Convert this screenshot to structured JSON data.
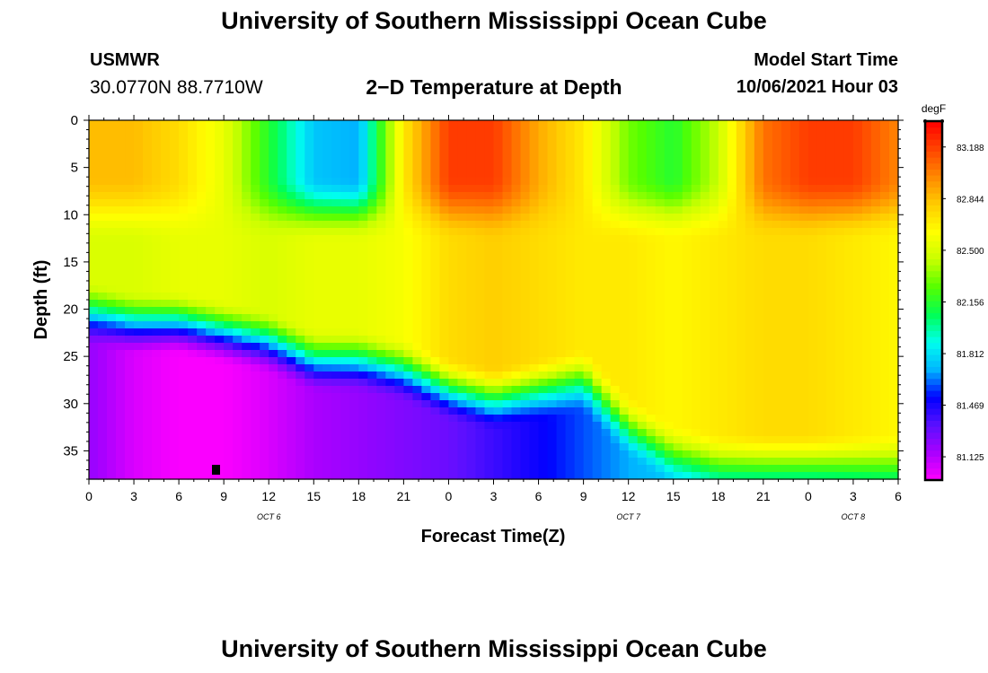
{
  "header": {
    "title": "University of Southern Mississippi Ocean Cube",
    "station": "USMWR",
    "coordinates": "30.0770N  88.7710W",
    "subtitle": "2−D Temperature at Depth",
    "model_start_label": "Model Start Time",
    "model_start_value": "10/06/2021 Hour 03"
  },
  "footer": {
    "title": "University of Southern Mississippi Ocean Cube"
  },
  "chart_data": {
    "type": "heatmap",
    "title": "2-D Temperature at Depth",
    "xlabel": "Forecast Time(Z)",
    "ylabel": "Depth (ft)",
    "x_tick_labels": [
      "0",
      "3",
      "6",
      "9",
      "12",
      "15",
      "18",
      "21",
      "0",
      "3",
      "6",
      "9",
      "12",
      "15",
      "18",
      "21",
      "0",
      "3",
      "6"
    ],
    "x_range_hours": [
      0,
      54
    ],
    "date_labels": [
      {
        "text": "OCT 6",
        "hour": 12
      },
      {
        "text": "OCT 7",
        "hour": 36
      },
      {
        "text": "OCT 8",
        "hour": 51
      }
    ],
    "y_tick_labels": [
      "0",
      "5",
      "10",
      "15",
      "20",
      "25",
      "30",
      "35"
    ],
    "y_ticks": [
      0,
      5,
      10,
      15,
      20,
      25,
      30,
      35
    ],
    "y_range_ft": [
      0,
      38
    ],
    "colorbar": {
      "unit": "degF",
      "tick_labels": [
        "83.188",
        "82.844",
        "82.500",
        "82.156",
        "81.812",
        "81.469",
        "81.125"
      ],
      "tick_values": [
        83.188,
        82.844,
        82.5,
        82.156,
        81.812,
        81.469,
        81.125
      ],
      "range": [
        80.97,
        83.36
      ],
      "colors": [
        "#ff00ff",
        "#aa00ff",
        "#5a10ff",
        "#0000ff",
        "#00b4ff",
        "#00ffee",
        "#00ff55",
        "#55ff00",
        "#c8ff00",
        "#ffff00",
        "#ffcc00",
        "#ff8800",
        "#ff4400",
        "#ff0000"
      ]
    },
    "series": [
      {
        "name": "thermocline_depth_ft",
        "x_hours": [
          0,
          3,
          6,
          9,
          12,
          15,
          18,
          21,
          24,
          27,
          30,
          33,
          36,
          39,
          42,
          45,
          48,
          51,
          54
        ],
        "values": [
          21,
          22,
          22,
          23,
          24,
          26,
          26,
          27,
          29,
          30,
          29,
          28,
          33,
          36,
          37,
          37,
          37,
          37,
          37
        ]
      },
      {
        "name": "surface_temp_degF",
        "x_hours": [
          0,
          3,
          6,
          9,
          12,
          15,
          18,
          21,
          24,
          27,
          30,
          33,
          36,
          39,
          42,
          45,
          48,
          51,
          54
        ],
        "values": [
          82.85,
          82.85,
          82.75,
          82.55,
          82.15,
          81.75,
          81.7,
          82.7,
          83.2,
          83.2,
          82.9,
          82.7,
          82.3,
          82.15,
          82.45,
          83.05,
          83.2,
          83.2,
          83.0
        ]
      },
      {
        "name": "mid_layer_temp_degF",
        "x_hours": [
          0,
          3,
          6,
          9,
          12,
          15,
          18,
          21,
          24,
          27,
          30,
          33,
          36,
          39,
          42,
          45,
          48,
          51,
          54
        ],
        "values": [
          82.5,
          82.5,
          82.55,
          82.55,
          82.5,
          82.55,
          82.55,
          82.6,
          82.75,
          82.8,
          82.75,
          82.7,
          82.7,
          82.65,
          82.7,
          82.75,
          82.75,
          82.7,
          82.65
        ]
      },
      {
        "name": "bottom_temp_degF",
        "x_hours": [
          0,
          3,
          6,
          9,
          12,
          15,
          18,
          21,
          24,
          27,
          30,
          33,
          36,
          39,
          42,
          45,
          48,
          51,
          54
        ],
        "values": [
          81.2,
          81.05,
          80.98,
          80.98,
          81.05,
          81.15,
          81.2,
          81.25,
          81.3,
          81.4,
          81.5,
          81.6,
          81.7,
          81.75,
          81.8,
          81.8,
          81.8,
          81.85,
          81.9
        ]
      }
    ]
  }
}
